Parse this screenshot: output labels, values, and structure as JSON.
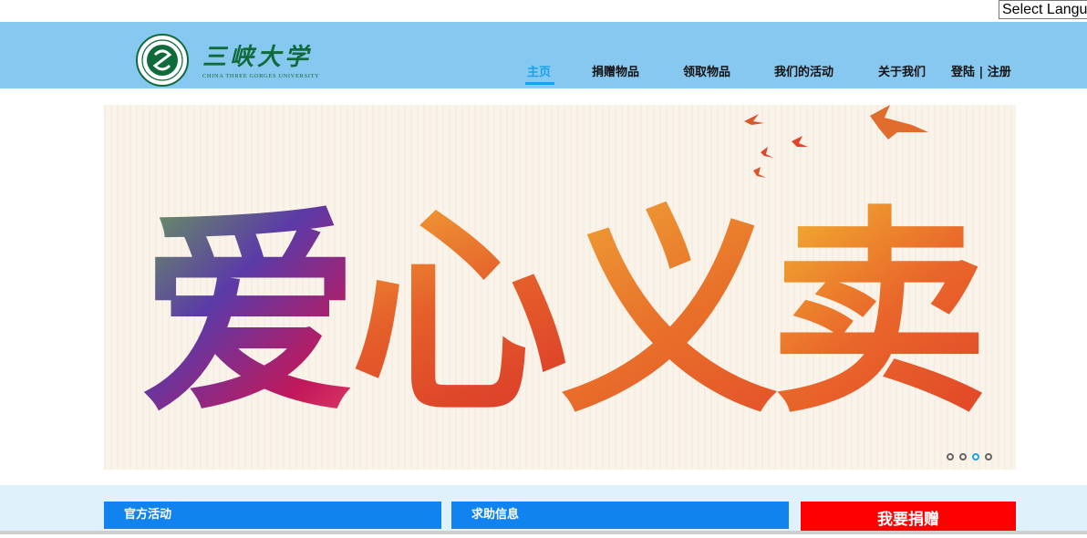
{
  "language_selector": {
    "label": "Select Language"
  },
  "logo": {
    "cn_text": "三峡大学",
    "en_text": "CHINA THREE GORGES UNIVERSITY",
    "emblem_icon": "university-emblem-icon"
  },
  "nav": {
    "items": [
      {
        "label": "主页",
        "active": true
      },
      {
        "label": "捐赠物品"
      },
      {
        "label": "领取物品"
      },
      {
        "label": "我们的活动"
      },
      {
        "label": "关于我们"
      }
    ],
    "auth_label": "登陆 | 注册"
  },
  "banner": {
    "text": [
      "爱",
      "心",
      "义",
      "卖"
    ],
    "slides_total": 4,
    "active_slide": 3
  },
  "sections": {
    "official_label": "官方活动",
    "help_label": "求助信息",
    "donate_label": "我要捐赠"
  },
  "colors": {
    "header_bg": "#87c8f0",
    "accent": "#1aa3e8",
    "tab_bg": "#1183ee",
    "donate_bg": "#ff0000",
    "logo_green": "#0f6b3a"
  }
}
